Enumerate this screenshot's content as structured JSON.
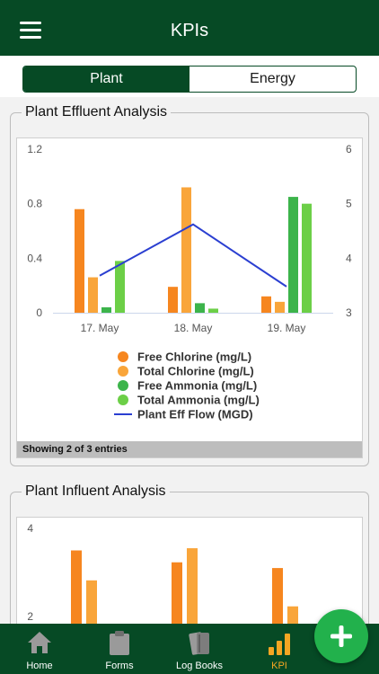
{
  "header": {
    "title": "KPIs",
    "menu_icon": "hamburger-menu-icon"
  },
  "tabs": [
    {
      "label": "Plant",
      "active": true
    },
    {
      "label": "Energy",
      "active": false
    }
  ],
  "colors": {
    "brand_green": "#064a25",
    "free_chlorine": "#f6861f",
    "total_chlorine": "#f9a53a",
    "free_ammonia": "#3cb44b",
    "total_ammonia": "#6ccf47",
    "flow": "#2b3fd1",
    "fab": "#22b14c",
    "active_nav": "#f5a623"
  },
  "panels": {
    "effluent": {
      "title": "Plant Effluent Analysis",
      "footer": "Showing 2 of 3 entries"
    },
    "influent": {
      "title": "Plant Influent Analysis"
    }
  },
  "chart_data": [
    {
      "type": "bar",
      "categories": [
        "17. May",
        "18. May",
        "19. May"
      ],
      "series": [
        {
          "name": "Free Chlorine (mg/L)",
          "values": [
            0.76,
            0.19,
            0.12
          ]
        },
        {
          "name": "Total Chlorine (mg/L)",
          "values": [
            0.26,
            0.92,
            0.08
          ]
        },
        {
          "name": "Free Ammonia (mg/L)",
          "values": [
            0.04,
            0.07,
            0.85
          ]
        },
        {
          "name": "Total Ammonia (mg/L)",
          "values": [
            0.38,
            0.03,
            0.8
          ]
        },
        {
          "name": "Plant Eff Flow (MGD)",
          "type": "line",
          "axis": "right",
          "values": [
            3.68,
            4.62,
            3.48
          ]
        }
      ],
      "y_left": {
        "lim": [
          0,
          1.2
        ],
        "ticks": [
          "0",
          "0.4",
          "0.8",
          "1.2"
        ]
      },
      "y_right": {
        "lim": [
          3,
          6
        ],
        "ticks": [
          "3",
          "4",
          "5",
          "6"
        ]
      },
      "legend": "bottom",
      "grid": false
    },
    {
      "type": "bar",
      "categories": [
        "",
        "",
        ""
      ],
      "series": [
        {
          "values": [
            3.5,
            3.23,
            3.1
          ]
        },
        {
          "values": [
            2.82,
            3.55,
            2.23
          ]
        }
      ],
      "y_left": {
        "lim": [
          1,
          4
        ],
        "ticks": [
          "2",
          "4"
        ]
      },
      "grid": false
    }
  ],
  "nav": [
    {
      "label": "Home",
      "icon": "home-icon",
      "active": false
    },
    {
      "label": "Forms",
      "icon": "clipboard-icon",
      "active": false
    },
    {
      "label": "Log Books",
      "icon": "books-icon",
      "active": false
    },
    {
      "label": "KPI",
      "icon": "bar-chart-icon",
      "active": true
    }
  ],
  "fab": {
    "icon": "plus-icon"
  }
}
